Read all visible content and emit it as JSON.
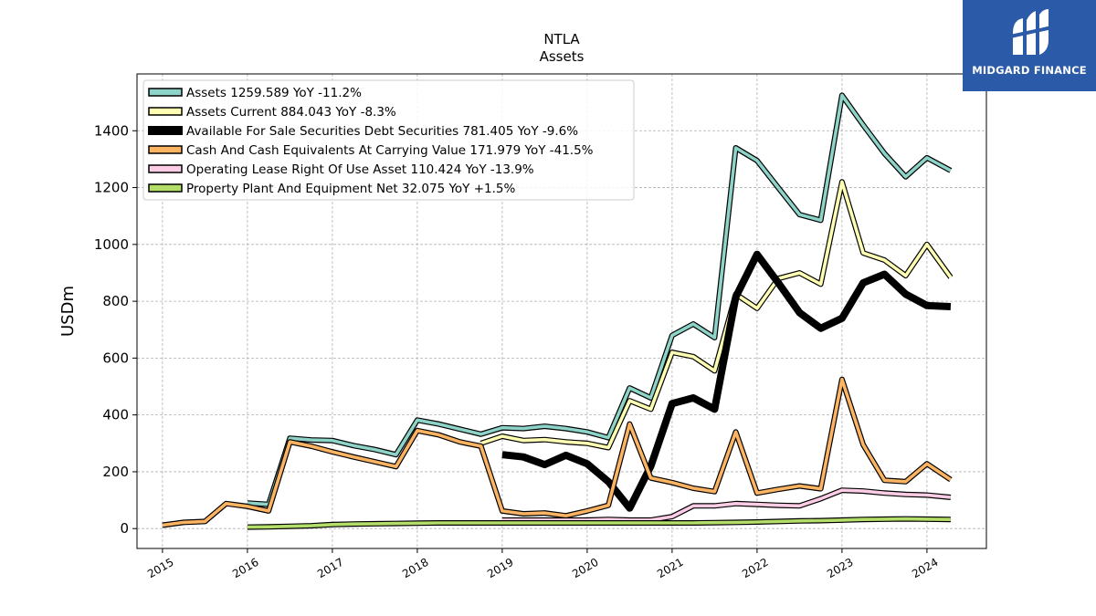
{
  "brand": {
    "name": "MIDGARD FINANCE",
    "bg_color": "#2a5aa8"
  },
  "chart_data": {
    "type": "line",
    "title": "NTLA",
    "subtitle": "Assets",
    "ylabel": "USDm",
    "xlabel": "",
    "xlim": [
      2014.7,
      2024.7
    ],
    "ylim": [
      -70,
      1600
    ],
    "x_ticks": [
      2015,
      2016,
      2017,
      2018,
      2019,
      2020,
      2021,
      2022,
      2023,
      2024
    ],
    "x_tick_labels": [
      "2015",
      "2016",
      "2017",
      "2018",
      "2019",
      "2020",
      "2021",
      "2022",
      "2023",
      "2024"
    ],
    "y_ticks": [
      0,
      200,
      400,
      600,
      800,
      1000,
      1200,
      1400
    ],
    "y_tick_labels": [
      "0",
      "200",
      "400",
      "600",
      "800",
      "1000",
      "1200",
      "1400"
    ],
    "grid": true,
    "legend_position": "top-left",
    "series": [
      {
        "name": "Assets",
        "legend_label": "Assets  1259.589 YoY -11.2%",
        "color": "#8dd3c7",
        "bold": false,
        "points": [
          [
            2016.0,
            90
          ],
          [
            2016.25,
            85
          ],
          [
            2016.5,
            318
          ],
          [
            2016.75,
            312
          ],
          [
            2017.0,
            310
          ],
          [
            2017.25,
            292
          ],
          [
            2017.5,
            278
          ],
          [
            2017.75,
            260
          ],
          [
            2018.0,
            382
          ],
          [
            2018.25,
            368
          ],
          [
            2018.5,
            350
          ],
          [
            2018.75,
            332
          ],
          [
            2019.0,
            355
          ],
          [
            2019.25,
            352
          ],
          [
            2019.5,
            360
          ],
          [
            2019.75,
            352
          ],
          [
            2020.0,
            340
          ],
          [
            2020.25,
            320
          ],
          [
            2020.5,
            495
          ],
          [
            2020.75,
            460
          ],
          [
            2021.0,
            680
          ],
          [
            2021.25,
            720
          ],
          [
            2021.5,
            672
          ],
          [
            2021.75,
            1340
          ],
          [
            2022.0,
            1295
          ],
          [
            2022.25,
            1200
          ],
          [
            2022.5,
            1105
          ],
          [
            2022.75,
            1085
          ],
          [
            2023.0,
            1525
          ],
          [
            2023.25,
            1420
          ],
          [
            2023.5,
            1320
          ],
          [
            2023.75,
            1238
          ],
          [
            2024.0,
            1305
          ],
          [
            2024.28,
            1260
          ]
        ]
      },
      {
        "name": "Assets Current",
        "legend_label": "Assets Current  884.043 YoY -8.3%",
        "color": "#ffffb3",
        "bold": false,
        "points": [
          [
            2018.75,
            300
          ],
          [
            2019.0,
            325
          ],
          [
            2019.25,
            310
          ],
          [
            2019.5,
            313
          ],
          [
            2019.75,
            305
          ],
          [
            2020.0,
            300
          ],
          [
            2020.25,
            285
          ],
          [
            2020.5,
            450
          ],
          [
            2020.75,
            420
          ],
          [
            2021.0,
            620
          ],
          [
            2021.25,
            605
          ],
          [
            2021.5,
            555
          ],
          [
            2021.75,
            825
          ],
          [
            2022.0,
            775
          ],
          [
            2022.25,
            880
          ],
          [
            2022.5,
            900
          ],
          [
            2022.75,
            860
          ],
          [
            2023.0,
            1220
          ],
          [
            2023.25,
            970
          ],
          [
            2023.5,
            945
          ],
          [
            2023.75,
            890
          ],
          [
            2024.0,
            1000
          ],
          [
            2024.28,
            884
          ]
        ]
      },
      {
        "name": "Available For Sale Securities Debt Securities",
        "legend_label": "Available For Sale Securities Debt Securities  781.405 YoY -9.6%",
        "color": "#000000",
        "bold": true,
        "points": [
          [
            2019.0,
            260
          ],
          [
            2019.25,
            252
          ],
          [
            2019.5,
            225
          ],
          [
            2019.75,
            258
          ],
          [
            2020.0,
            228
          ],
          [
            2020.25,
            165
          ],
          [
            2020.5,
            72
          ],
          [
            2020.75,
            220
          ],
          [
            2021.0,
            440
          ],
          [
            2021.25,
            460
          ],
          [
            2021.5,
            420
          ],
          [
            2021.75,
            815
          ],
          [
            2022.0,
            965
          ],
          [
            2022.25,
            865
          ],
          [
            2022.5,
            760
          ],
          [
            2022.75,
            705
          ],
          [
            2023.0,
            740
          ],
          [
            2023.25,
            865
          ],
          [
            2023.5,
            895
          ],
          [
            2023.75,
            825
          ],
          [
            2024.0,
            785
          ],
          [
            2024.28,
            781
          ]
        ]
      },
      {
        "name": "Cash And Cash Equivalents At Carrying Value",
        "legend_label": "Cash And Cash Equivalents At Carrying Value  171.979 YoY -41.5%",
        "color": "#fdb462",
        "bold": false,
        "points": [
          [
            2015.0,
            12
          ],
          [
            2015.25,
            22
          ],
          [
            2015.5,
            25
          ],
          [
            2015.75,
            88
          ],
          [
            2016.0,
            78
          ],
          [
            2016.25,
            62
          ],
          [
            2016.5,
            305
          ],
          [
            2016.75,
            290
          ],
          [
            2017.0,
            270
          ],
          [
            2017.25,
            252
          ],
          [
            2017.5,
            235
          ],
          [
            2017.75,
            218
          ],
          [
            2018.0,
            345
          ],
          [
            2018.25,
            330
          ],
          [
            2018.5,
            305
          ],
          [
            2018.75,
            290
          ],
          [
            2019.0,
            62
          ],
          [
            2019.25,
            52
          ],
          [
            2019.5,
            55
          ],
          [
            2019.75,
            45
          ],
          [
            2020.0,
            62
          ],
          [
            2020.25,
            82
          ],
          [
            2020.5,
            368
          ],
          [
            2020.75,
            178
          ],
          [
            2021.0,
            162
          ],
          [
            2021.25,
            142
          ],
          [
            2021.5,
            130
          ],
          [
            2021.75,
            340
          ],
          [
            2022.0,
            125
          ],
          [
            2022.25,
            138
          ],
          [
            2022.5,
            150
          ],
          [
            2022.75,
            140
          ],
          [
            2023.0,
            525
          ],
          [
            2023.25,
            295
          ],
          [
            2023.5,
            170
          ],
          [
            2023.75,
            165
          ],
          [
            2024.0,
            228
          ],
          [
            2024.28,
            172
          ]
        ]
      },
      {
        "name": "Operating Lease Right Of Use Asset",
        "legend_label": "Operating Lease Right Of Use Asset  110.424 YoY -13.9%",
        "color": "#fccde5",
        "bold": false,
        "points": [
          [
            2019.0,
            30
          ],
          [
            2019.25,
            30
          ],
          [
            2019.5,
            30
          ],
          [
            2019.75,
            30
          ],
          [
            2020.0,
            30
          ],
          [
            2020.25,
            32
          ],
          [
            2020.5,
            30
          ],
          [
            2020.75,
            30
          ],
          [
            2021.0,
            42
          ],
          [
            2021.25,
            80
          ],
          [
            2021.5,
            80
          ],
          [
            2021.75,
            88
          ],
          [
            2022.0,
            85
          ],
          [
            2022.25,
            82
          ],
          [
            2022.5,
            80
          ],
          [
            2022.75,
            105
          ],
          [
            2023.0,
            135
          ],
          [
            2023.25,
            132
          ],
          [
            2023.5,
            125
          ],
          [
            2023.75,
            120
          ],
          [
            2024.0,
            118
          ],
          [
            2024.28,
            110
          ]
        ]
      },
      {
        "name": "Property Plant And Equipment Net",
        "legend_label": "Property Plant And Equipment Net  32.075 YoY +1.5%",
        "color": "#b3de69",
        "bold": false,
        "points": [
          [
            2016.0,
            5
          ],
          [
            2016.25,
            6
          ],
          [
            2016.5,
            8
          ],
          [
            2016.75,
            10
          ],
          [
            2017.0,
            14
          ],
          [
            2017.25,
            16
          ],
          [
            2017.5,
            17
          ],
          [
            2017.75,
            18
          ],
          [
            2018.0,
            19
          ],
          [
            2018.25,
            20
          ],
          [
            2018.5,
            20
          ],
          [
            2018.75,
            20
          ],
          [
            2019.0,
            20
          ],
          [
            2019.25,
            20
          ],
          [
            2019.5,
            20
          ],
          [
            2019.75,
            20
          ],
          [
            2020.0,
            20
          ],
          [
            2020.25,
            20
          ],
          [
            2020.5,
            20
          ],
          [
            2020.75,
            20
          ],
          [
            2021.0,
            20
          ],
          [
            2021.25,
            20
          ],
          [
            2021.5,
            21
          ],
          [
            2021.75,
            22
          ],
          [
            2022.0,
            23
          ],
          [
            2022.25,
            25
          ],
          [
            2022.5,
            27
          ],
          [
            2022.75,
            28
          ],
          [
            2023.0,
            30
          ],
          [
            2023.25,
            32
          ],
          [
            2023.5,
            33
          ],
          [
            2023.75,
            34
          ],
          [
            2024.0,
            33
          ],
          [
            2024.28,
            32
          ]
        ]
      }
    ]
  }
}
